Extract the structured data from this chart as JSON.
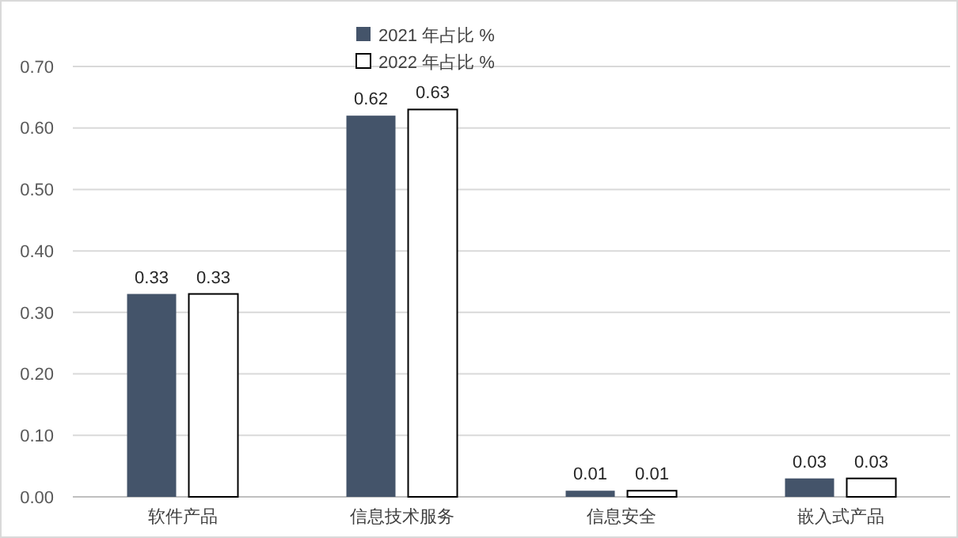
{
  "chart_data": {
    "type": "bar",
    "categories": [
      "软件产品",
      "信息技术服务",
      "信息安全",
      "嵌入式产品"
    ],
    "series": [
      {
        "name": "2021 年占比 %",
        "color": "#44546a",
        "values": [
          0.33,
          0.62,
          0.01,
          0.03
        ]
      },
      {
        "name": "2022 年占比 %",
        "color": "#ffffff",
        "values": [
          0.33,
          0.63,
          0.01,
          0.03
        ]
      }
    ],
    "ylim": [
      0,
      0.7
    ],
    "yticks": [
      {
        "value": 0,
        "label": "0.00"
      },
      {
        "value": 0.1,
        "label": "0.10"
      },
      {
        "value": 0.2,
        "label": "0.20"
      },
      {
        "value": 0.3,
        "label": "0.30"
      },
      {
        "value": 0.4,
        "label": "0.40"
      },
      {
        "value": 0.5,
        "label": "0.50"
      },
      {
        "value": 0.6,
        "label": "0.60"
      },
      {
        "value": 0.7,
        "label": "0.70"
      }
    ],
    "grid": "y",
    "legend": "top",
    "data_labels": true
  }
}
